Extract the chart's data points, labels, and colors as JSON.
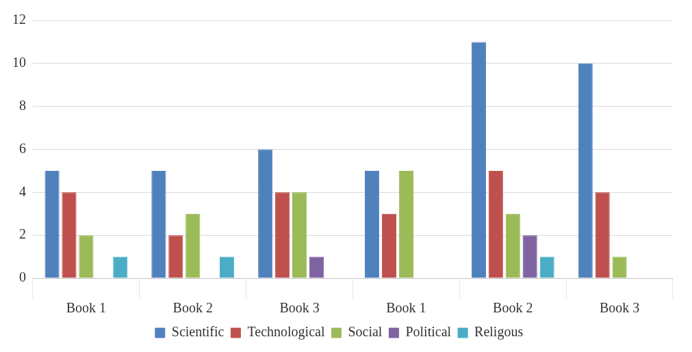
{
  "chart_data": {
    "type": "bar",
    "categories": [
      "Book 1",
      "Book 2",
      "Book 3",
      "Book 1",
      "Book 2",
      "Book 3"
    ],
    "series": [
      {
        "name": "Scientific",
        "color": "#4f81bd",
        "values": [
          5,
          5,
          6,
          5,
          11,
          10
        ]
      },
      {
        "name": "Technological",
        "color": "#c0504d",
        "values": [
          4,
          2,
          4,
          3,
          5,
          4
        ]
      },
      {
        "name": "Social",
        "color": "#9bbb59",
        "values": [
          2,
          3,
          4,
          5,
          3,
          1
        ]
      },
      {
        "name": "Political",
        "color": "#8064a2",
        "values": [
          0,
          0,
          1,
          0,
          2,
          0
        ]
      },
      {
        "name": "Religous",
        "color": "#4bacc6",
        "values": [
          1,
          1,
          0,
          0,
          1,
          0
        ]
      }
    ],
    "ylim": [
      0,
      12
    ],
    "yticks": [
      0,
      2,
      4,
      6,
      8,
      10,
      12
    ],
    "grid": "y",
    "legend": "bottom"
  }
}
